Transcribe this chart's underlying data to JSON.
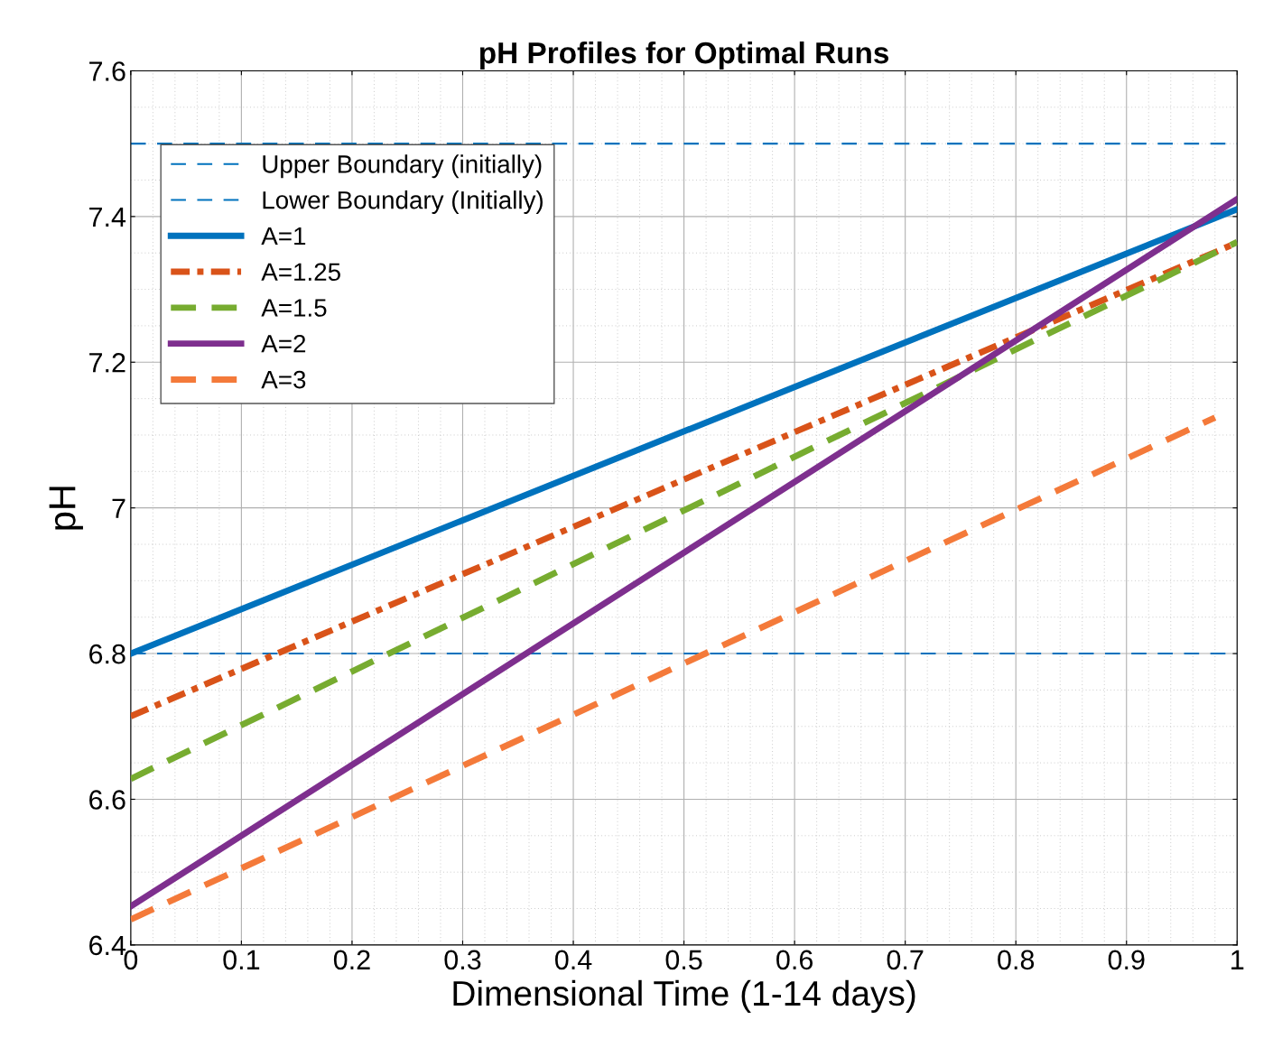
{
  "chart_data": {
    "type": "line",
    "title": "pH Profiles for Optimal Runs",
    "xlabel": "Dimensional Time (1-14 days)",
    "ylabel": "pH",
    "xlim": [
      0,
      1
    ],
    "xticks": [
      0,
      0.1,
      0.2,
      0.3,
      0.4,
      0.5,
      0.6,
      0.7,
      0.8,
      0.9,
      1
    ],
    "ylim": [
      6.4,
      7.6
    ],
    "yticks": [
      6.4,
      6.6,
      6.8,
      7,
      7.2,
      7.4,
      7.6
    ],
    "grid": true,
    "legend": "top left",
    "ref_lines": [
      {
        "axis": "y",
        "value": 7.5,
        "label": "Upper Boundary (initially)",
        "color": "#0072bd",
        "line_style": "dashed"
      },
      {
        "axis": "y",
        "value": 6.8,
        "label": "Lower Boundary (Initially)",
        "color": "#0072bd",
        "line_style": "dashed"
      }
    ],
    "series": [
      {
        "name": "A=1",
        "color": "#0072bd",
        "line_style": "solid",
        "x": [
          0,
          1
        ],
        "values": [
          6.8,
          7.41
        ]
      },
      {
        "name": "A=1.25",
        "color": "#d95319",
        "line_style": "dashdot",
        "x": [
          0,
          1
        ],
        "values": [
          6.714,
          7.364
        ]
      },
      {
        "name": "A=1.5",
        "color": "#77ac30",
        "line_style": "dashed",
        "x": [
          0,
          1
        ],
        "values": [
          6.628,
          7.365
        ]
      },
      {
        "name": "A=2",
        "color": "#7e2f8e",
        "line_style": "solid",
        "x": [
          0,
          1
        ],
        "values": [
          6.453,
          7.424
        ]
      },
      {
        "name": "A=3",
        "color": "#f47a3a",
        "line_style": "dashed",
        "x": [
          0,
          0.98
        ],
        "values": [
          6.435,
          7.124
        ]
      }
    ]
  }
}
